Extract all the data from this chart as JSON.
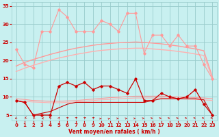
{
  "x": [
    0,
    1,
    2,
    3,
    4,
    5,
    6,
    7,
    8,
    9,
    10,
    11,
    12,
    13,
    14,
    15,
    16,
    17,
    18,
    19,
    20,
    21,
    22,
    23
  ],
  "line_rafales_jagged": [
    23,
    19,
    18,
    28,
    28,
    34,
    32,
    28,
    28,
    28,
    31,
    30,
    28,
    33,
    33,
    22,
    27,
    27,
    24,
    27,
    24,
    24,
    19,
    15
  ],
  "line_smooth1": [
    18.5,
    19.5,
    20.3,
    21.0,
    21.7,
    22.3,
    22.9,
    23.4,
    23.8,
    24.2,
    24.5,
    24.7,
    24.9,
    25.0,
    25.1,
    25.0,
    24.8,
    24.6,
    24.3,
    24.0,
    23.6,
    23.2,
    22.7,
    15.5
  ],
  "line_smooth2": [
    17.0,
    17.9,
    18.7,
    19.4,
    20.1,
    20.7,
    21.2,
    21.7,
    22.1,
    22.5,
    22.8,
    23.0,
    23.2,
    23.3,
    23.4,
    23.4,
    23.2,
    23.0,
    22.8,
    22.5,
    22.2,
    21.8,
    21.4,
    15.2
  ],
  "line_vent_jagged": [
    9,
    8.5,
    5,
    5,
    5,
    13,
    14,
    13,
    14,
    12,
    13,
    13,
    12,
    11,
    15,
    9,
    9,
    11,
    10,
    9.5,
    10,
    12,
    8,
    5
  ],
  "line_smooth3": [
    9.5,
    9.3,
    9.0,
    8.9,
    8.8,
    8.8,
    8.9,
    9.0,
    9.2,
    9.4,
    9.6,
    9.8,
    9.9,
    10.1,
    10.2,
    10.2,
    10.2,
    10.2,
    10.1,
    10.0,
    9.9,
    9.8,
    9.7,
    9.5
  ],
  "line_smooth4": [
    9.0,
    8.8,
    8.6,
    8.5,
    8.4,
    8.4,
    8.5,
    8.6,
    8.8,
    9.0,
    9.2,
    9.3,
    9.5,
    9.6,
    9.7,
    9.7,
    9.7,
    9.7,
    9.6,
    9.5,
    9.4,
    9.3,
    9.2,
    9.0
  ],
  "line_base_dark": [
    9,
    8.5,
    5,
    5.5,
    6,
    7,
    8,
    8.5,
    8.5,
    8.5,
    8.5,
    8.5,
    8.5,
    8.5,
    8.5,
    8.5,
    9,
    9.5,
    9.5,
    9.5,
    9.5,
    9.5,
    9.2,
    5
  ],
  "arrow_angles": [
    210,
    240,
    250,
    300,
    340,
    20,
    30,
    40,
    40,
    45,
    50,
    50,
    55,
    55,
    55,
    60,
    65,
    65,
    70,
    70,
    75,
    80,
    85,
    90
  ],
  "bg_color": "#c8f0f0",
  "grid_color": "#99cccc",
  "color_light_pink": "#ff9999",
  "color_mid_pink": "#ffb0b0",
  "color_dark_red": "#cc0000",
  "color_medium_red": "#ee4444",
  "ylim": [
    3.5,
    36
  ],
  "xlim": [
    -0.5,
    23.5
  ],
  "yticks": [
    5,
    10,
    15,
    20,
    25,
    30,
    35
  ],
  "xticks": [
    0,
    1,
    2,
    3,
    4,
    5,
    6,
    7,
    8,
    9,
    10,
    11,
    12,
    13,
    14,
    15,
    16,
    17,
    18,
    19,
    20,
    21,
    22,
    23
  ],
  "xlabel": "Vent moyen/en rafales ( km/h )"
}
